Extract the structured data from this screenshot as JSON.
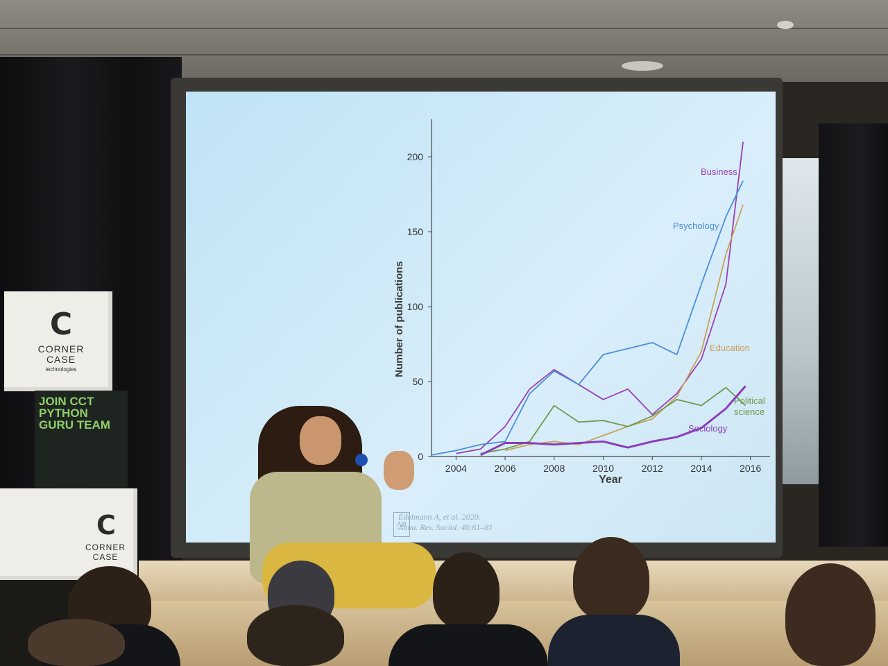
{
  "photo": {
    "banner_text": "JOIN CCT\nPYTHON\nGURU TEAM",
    "brand_top": "CORNER\nCASE",
    "brand_top_sub": "technologies",
    "brand_bottom": "CORNER\nCASE",
    "logo_glyph": "C"
  },
  "slide": {
    "citation_line1": "Edelmann A, et al. 2020.",
    "citation_line2": "Annu. Rev. Sociol. 46:61–81",
    "journal_mark": "AR"
  },
  "chart_data": {
    "type": "line",
    "title": "",
    "xlabel": "Year",
    "ylabel": "Number of publications",
    "xlim": [
      2003,
      2016.8
    ],
    "ylim": [
      0,
      225
    ],
    "x_ticks": [
      2004,
      2006,
      2008,
      2010,
      2012,
      2014,
      2016
    ],
    "y_ticks": [
      0,
      50,
      100,
      150,
      200
    ],
    "grid": false,
    "legend": "inline labels",
    "series": [
      {
        "name": "Business",
        "color": "#9b3fb5",
        "x": [
          2004,
          2005,
          2006,
          2007,
          2008,
          2009,
          2010,
          2011,
          2012,
          2013,
          2014,
          2015,
          2015.7
        ],
        "y": [
          2,
          5,
          20,
          45,
          58,
          48,
          38,
          45,
          28,
          42,
          65,
          115,
          210
        ]
      },
      {
        "name": "Psychology",
        "color": "#4a8fd6",
        "x": [
          2003,
          2004,
          2005,
          2006,
          2007,
          2008,
          2009,
          2010,
          2011,
          2012,
          2013,
          2014,
          2015,
          2015.7
        ],
        "y": [
          1,
          4,
          8,
          10,
          42,
          57,
          48,
          68,
          72,
          76,
          68,
          115,
          160,
          184
        ]
      },
      {
        "name": "Education",
        "color": "#c9a15a",
        "x": [
          2006,
          2007,
          2008,
          2009,
          2010,
          2011,
          2012,
          2013,
          2014,
          2015,
          2015.7
        ],
        "y": [
          4,
          8,
          10,
          8,
          14,
          20,
          25,
          40,
          70,
          135,
          168
        ]
      },
      {
        "name": "Political\nscience",
        "color": "#6f9a4e",
        "x": [
          2005,
          2006,
          2007,
          2008,
          2009,
          2010,
          2011,
          2012,
          2013,
          2014,
          2015,
          2015.8
        ],
        "y": [
          2,
          5,
          10,
          34,
          23,
          24,
          20,
          27,
          38,
          34,
          46,
          34
        ]
      },
      {
        "name": "Sociology",
        "color": "#8a3fb8",
        "x": [
          2005,
          2006,
          2007,
          2008,
          2009,
          2010,
          2011,
          2012,
          2013,
          2014,
          2015,
          2015.8
        ],
        "y": [
          1,
          9,
          9,
          8,
          9,
          10,
          6,
          10,
          13,
          19,
          32,
          47
        ]
      }
    ]
  }
}
